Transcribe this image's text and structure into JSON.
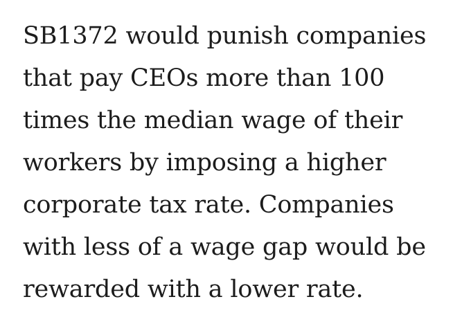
{
  "article": {
    "paragraph_lines": [
      "SB1372 would punish companies",
      "that pay CEOs more than 100",
      "times the median wage of their",
      "workers by imposing a higher",
      "corporate tax rate. Companies",
      "with less of a wage gap would be",
      "rewarded with a lower rate."
    ]
  }
}
